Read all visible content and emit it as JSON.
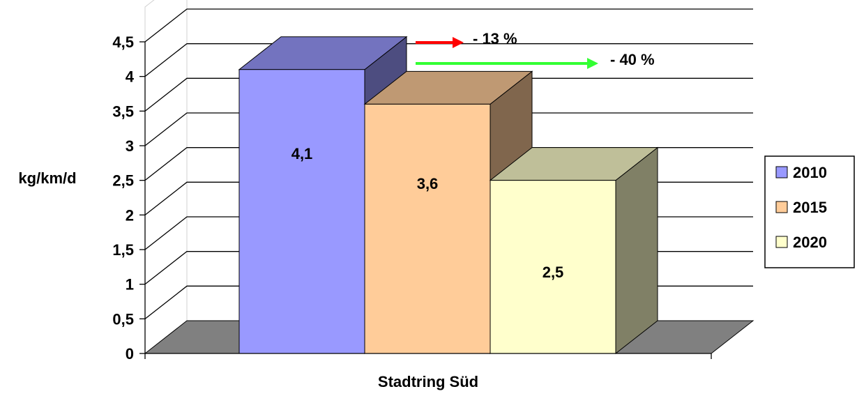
{
  "chart_data": {
    "type": "bar",
    "categories": [
      "Stadtring Süd"
    ],
    "xlabel": "Stadtring Süd",
    "ylabel": "kg/km/d",
    "ylim": [
      0,
      4.5
    ],
    "yticks": [
      "0",
      "0,5",
      "1",
      "1,5",
      "2",
      "2,5",
      "3",
      "3,5",
      "4",
      "4,5"
    ],
    "grid": true,
    "legend_position": "right",
    "series": [
      {
        "name": "2010",
        "values": [
          4.1
        ],
        "label": "4,1",
        "color": "#9999ff"
      },
      {
        "name": "2015",
        "values": [
          3.6
        ],
        "label": "3,6",
        "color": "#ffcc99"
      },
      {
        "name": "2020",
        "values": [
          2.5
        ],
        "label": "2,5",
        "color": "#ffffcc"
      }
    ],
    "annotations": [
      {
        "text": "- 13 %",
        "arrow_color": "#ff0000"
      },
      {
        "text": "- 40 %",
        "arrow_color": "#33ff33"
      }
    ]
  }
}
